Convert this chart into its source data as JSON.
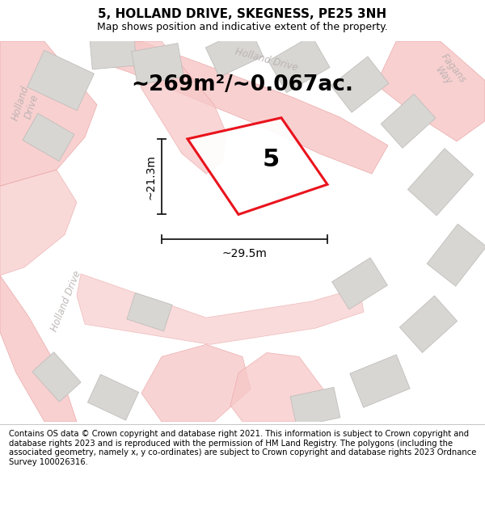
{
  "title": "5, HOLLAND DRIVE, SKEGNESS, PE25 3NH",
  "subtitle": "Map shows position and indicative extent of the property.",
  "area_text": "~269m²/~0.067ac.",
  "number_label": "5",
  "dim_width": "~29.5m",
  "dim_height": "~21.3m",
  "footer": "Contains OS data © Crown copyright and database right 2021. This information is subject to Crown copyright and database rights 2023 and is reproduced with the permission of HM Land Registry. The polygons (including the associated geometry, namely x, y co-ordinates) are subject to Crown copyright and database rights 2023 Ordnance Survey 100026316.",
  "bg_color": "#f2f0ed",
  "road_fill": "#f7c8c8",
  "road_edge": "#e8a0a0",
  "building_fill": "#d8d6d2",
  "building_edge": "#c0bebb",
  "plot_red": "#e8000a",
  "plot_fill": "#ffffff",
  "arrow_color": "#1a1a1a",
  "title_fontsize": 11,
  "subtitle_fontsize": 9,
  "area_fontsize": 19,
  "label_fontsize": 22,
  "dim_fontsize": 10,
  "footer_fontsize": 7.2,
  "road_label_color": "#b8b0b0",
  "road_label_fontsize": 8.5
}
